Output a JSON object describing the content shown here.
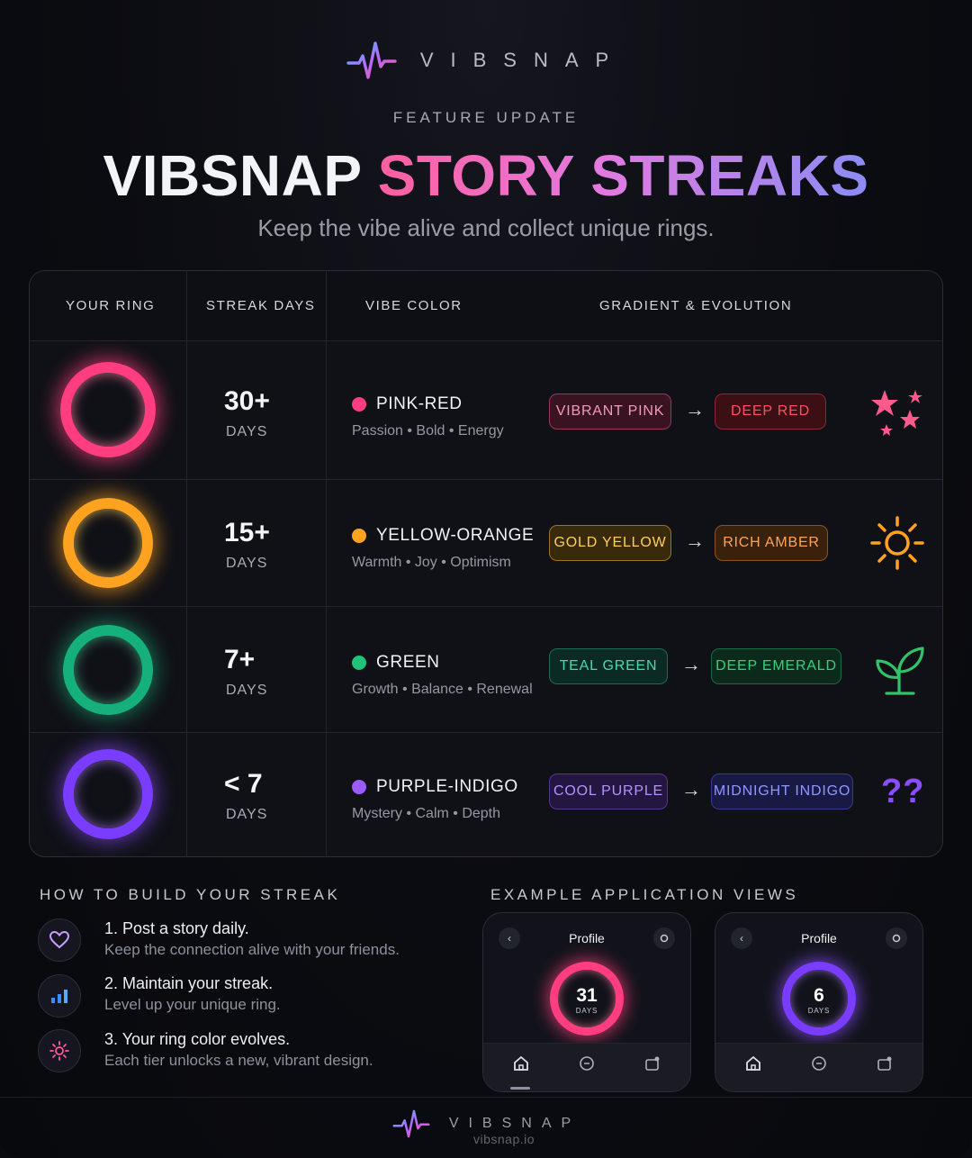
{
  "brand": {
    "name": "VIBSNAP",
    "logo_icon": "vibsnap-pulse-logo-icon"
  },
  "header": {
    "kicker": "FEATURE UPDATE",
    "title_white": "VIBSNAP",
    "title_gradient": "STORY STREAKS",
    "subtitle": "Keep the vibe alive and collect unique rings."
  },
  "table": {
    "headers": [
      "YOUR RING",
      "STREAK DAYS",
      "VIBE COLOR",
      "GRADIENT & EVOLUTION"
    ],
    "rows": [
      {
        "days": "30+",
        "days_label": "DAYS",
        "vibe": "PINK-RED",
        "tags": "Passion • Bold • Energy",
        "from": "VIBRANT PINK",
        "to": "DEEP RED",
        "color": "#ff3d7f",
        "icon": "stars-icon"
      },
      {
        "days": "15+",
        "days_label": "DAYS",
        "vibe": "YELLOW-ORANGE",
        "tags": "Warmth • Joy • Optimism",
        "from": "GOLD YELLOW",
        "to": "RICH AMBER",
        "color": "#ffa21f",
        "icon": "sun-icon"
      },
      {
        "days": "7+",
        "days_label": "DAYS",
        "vibe": "GREEN",
        "tags": "Growth • Balance • Renewal",
        "from": "TEAL GREEN",
        "to": "DEEP EMERALD",
        "color": "#1fc48a",
        "icon": "sprout-icon"
      },
      {
        "days": "< 7",
        "days_label": "DAYS",
        "vibe": "PURPLE-INDIGO",
        "tags": "Mystery • Calm • Depth",
        "from": "COOL PURPLE",
        "to": "MIDNIGHT INDIGO",
        "color": "#8a4dff",
        "icon": "question-marks-icon"
      }
    ],
    "arrow": "→"
  },
  "how_to": {
    "title": "HOW TO BUILD YOUR STREAK",
    "steps": [
      {
        "title": "1. Post a story daily.",
        "desc": "Keep the connection alive with your friends.",
        "icon": "heart-icon"
      },
      {
        "title": "2. Maintain your streak.",
        "desc": "Level up your unique ring.",
        "icon": "bar-chart-icon"
      },
      {
        "title": "3. Your ring color evolves.",
        "desc": "Each tier unlocks a new, vibrant design.",
        "icon": "sparkle-sun-icon"
      }
    ]
  },
  "examples": {
    "title": "EXAMPLE APPLICATION VIEWS",
    "phones": [
      {
        "title": "Profile",
        "value": "31",
        "label": "DAYS",
        "left_btn": "‹",
        "color": "#ff3d7f"
      },
      {
        "title": "Profile",
        "value": "6",
        "label": "DAYS",
        "left_btn": "‹",
        "color": "#8a4dff"
      }
    ]
  },
  "footer": {
    "name": "VIBSNAP",
    "url": "vibsnap.io"
  }
}
